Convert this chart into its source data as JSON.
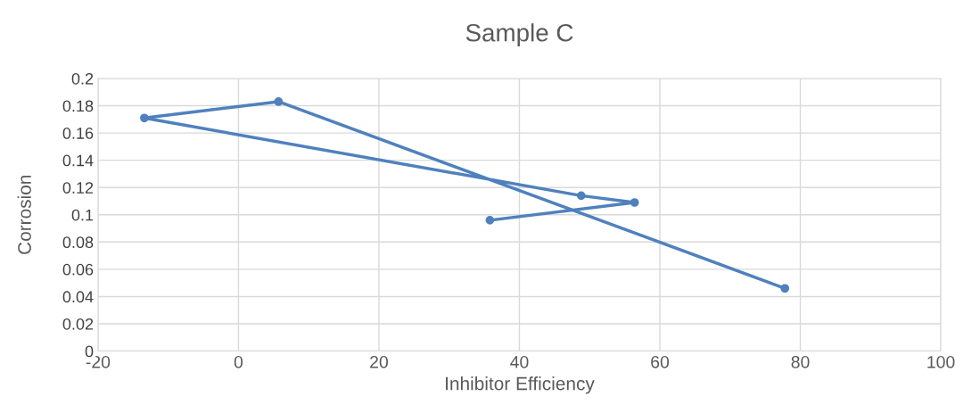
{
  "chart_data": {
    "type": "line",
    "title": "Sample C",
    "xlabel": "Inhibitor Efficiency",
    "ylabel": "Corrosion",
    "series": [
      {
        "color": "#4f81bd",
        "x": [
          35.8,
          56.4,
          48.8,
          -13.4,
          5.7,
          77.8
        ],
        "values": [
          0.096,
          0.109,
          0.114,
          0.171,
          0.183,
          0.046
        ]
      }
    ],
    "xlim": [
      -20,
      100
    ],
    "xticks": [
      -20,
      0,
      20,
      40,
      60,
      80,
      100
    ],
    "ylim": [
      0,
      0.2
    ],
    "yticks": [
      0,
      0.02,
      0.04,
      0.06,
      0.08,
      0.1,
      0.12,
      0.14,
      0.16,
      0.18,
      0.2
    ],
    "grid": true,
    "marker": "circle",
    "line_style": "solid"
  }
}
